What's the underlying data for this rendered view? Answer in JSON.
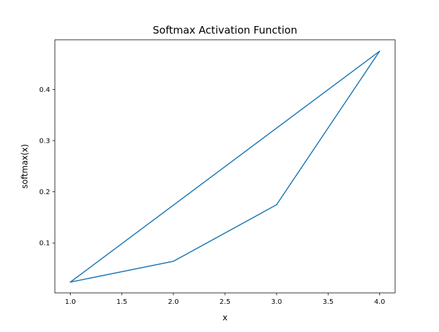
{
  "chart_data": {
    "type": "line",
    "title": "Softmax Activation Function",
    "xlabel": "x",
    "ylabel": "softmax(x)",
    "xlim": [
      0.85,
      4.15
    ],
    "ylim": [
      0.0025,
      0.497
    ],
    "x_ticks": [
      1.0,
      1.5,
      2.0,
      2.5,
      3.0,
      3.5,
      4.0
    ],
    "x_tick_labels": [
      "1.0",
      "1.5",
      "2.0",
      "2.5",
      "3.0",
      "3.5",
      "4.0"
    ],
    "y_ticks": [
      0.1,
      0.2,
      0.3,
      0.4
    ],
    "y_tick_labels": [
      "0.1",
      "0.2",
      "0.3",
      "0.4"
    ],
    "grid": false,
    "color": "#1f77b4",
    "series": [
      {
        "x": [
          1.0,
          2.0,
          3.0,
          4.0,
          1.0,
          2.0,
          3.0,
          4.0
        ],
        "values": [
          0.0236,
          0.0643,
          0.1747,
          0.4748,
          0.0236,
          0.0643,
          0.1747,
          0.4748
        ]
      }
    ]
  }
}
